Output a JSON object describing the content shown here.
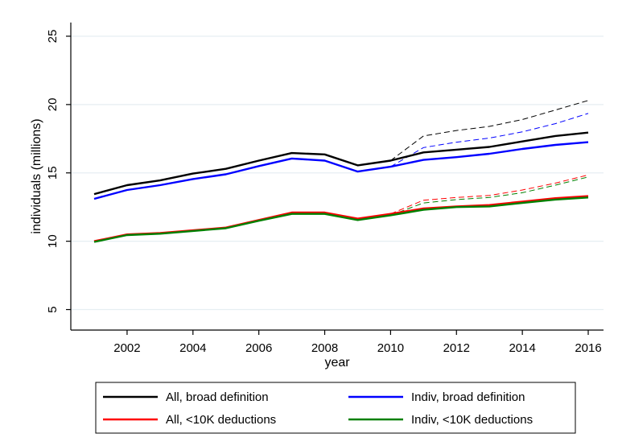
{
  "chart_data": {
    "type": "line",
    "xlabel": "year",
    "ylabel": "individuals (millions)",
    "xlim": [
      2001,
      2016
    ],
    "ylim": [
      3.5,
      26
    ],
    "x_ticks": [
      2002,
      2004,
      2006,
      2008,
      2010,
      2012,
      2014,
      2016
    ],
    "x_tick_labels": [
      "2002",
      "2004",
      "2006",
      "2008",
      "2010",
      "2012",
      "2014",
      "2016"
    ],
    "y_ticks": [
      5,
      10,
      15,
      20,
      25
    ],
    "y_tick_labels": [
      "5",
      "10",
      "15",
      "20",
      "25"
    ],
    "grid": "horizontal",
    "legend_position": "bottom",
    "series": [
      {
        "name": "All, broad definition",
        "color": "#000000",
        "x": [
          2001,
          2002,
          2003,
          2004,
          2005,
          2006,
          2007,
          2008,
          2009,
          2010,
          2011,
          2012,
          2013,
          2014,
          2015,
          2016
        ],
        "values": [
          13.45,
          14.1,
          14.45,
          14.95,
          15.3,
          15.9,
          16.45,
          16.35,
          15.55,
          15.9,
          16.5,
          16.7,
          16.9,
          17.3,
          17.7,
          17.95
        ]
      },
      {
        "name": "Indiv, broad definition",
        "color": "#0000ff",
        "x": [
          2001,
          2002,
          2003,
          2004,
          2005,
          2006,
          2007,
          2008,
          2009,
          2010,
          2011,
          2012,
          2013,
          2014,
          2015,
          2016
        ],
        "values": [
          13.1,
          13.75,
          14.1,
          14.55,
          14.9,
          15.5,
          16.05,
          15.9,
          15.1,
          15.45,
          15.95,
          16.15,
          16.4,
          16.75,
          17.05,
          17.25
        ]
      },
      {
        "name": "All, <10K deductions",
        "color": "#ff0000",
        "x": [
          2001,
          2002,
          2003,
          2004,
          2005,
          2006,
          2007,
          2008,
          2009,
          2010,
          2011,
          2012,
          2013,
          2014,
          2015,
          2016
        ],
        "values": [
          10.0,
          10.5,
          10.6,
          10.8,
          11.0,
          11.55,
          12.1,
          12.1,
          11.65,
          12.0,
          12.4,
          12.55,
          12.65,
          12.9,
          13.15,
          13.3
        ]
      },
      {
        "name": "Indiv, <10K deductions",
        "color": "#008000",
        "x": [
          2001,
          2002,
          2003,
          2004,
          2005,
          2006,
          2007,
          2008,
          2009,
          2010,
          2011,
          2012,
          2013,
          2014,
          2015,
          2016
        ],
        "values": [
          9.95,
          10.45,
          10.55,
          10.75,
          10.95,
          11.5,
          12.0,
          12.0,
          11.55,
          11.9,
          12.3,
          12.5,
          12.55,
          12.8,
          13.05,
          13.2
        ]
      }
    ],
    "dashed_series": [
      {
        "color": "#000000",
        "x": [
          2010,
          2011,
          2012,
          2013,
          2014,
          2015,
          2016
        ],
        "values": [
          15.9,
          17.7,
          18.1,
          18.4,
          18.9,
          19.6,
          20.3
        ]
      },
      {
        "color": "#0000ff",
        "x": [
          2010,
          2011,
          2012,
          2013,
          2014,
          2015,
          2016
        ],
        "values": [
          15.45,
          16.85,
          17.25,
          17.55,
          18.0,
          18.6,
          19.35
        ]
      },
      {
        "color": "#ff0000",
        "x": [
          2010,
          2011,
          2012,
          2013,
          2014,
          2015,
          2016
        ],
        "values": [
          12.0,
          13.0,
          13.2,
          13.35,
          13.75,
          14.25,
          14.85
        ]
      },
      {
        "color": "#008000",
        "x": [
          2010,
          2011,
          2012,
          2013,
          2014,
          2015,
          2016
        ],
        "values": [
          11.9,
          12.8,
          13.05,
          13.2,
          13.55,
          14.1,
          14.7
        ]
      }
    ]
  },
  "legend": {
    "items": [
      {
        "label": "All, broad definition",
        "color": "#000000"
      },
      {
        "label": "Indiv, broad definition",
        "color": "#0000ff"
      },
      {
        "label": "All, <10K deductions",
        "color": "#ff0000"
      },
      {
        "label": "Indiv, <10K deductions",
        "color": "#008000"
      }
    ]
  }
}
